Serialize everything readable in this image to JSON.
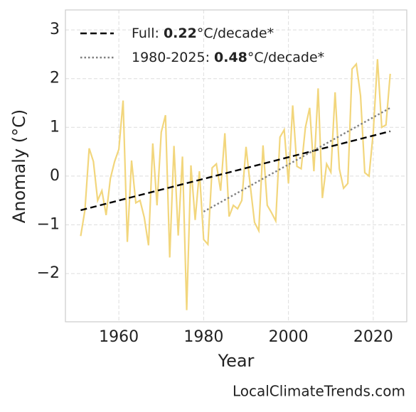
{
  "chart_data": {
    "type": "line",
    "x_label": "Year",
    "y_label": "Anomaly (°C)",
    "source": "LocalClimateTrends.com",
    "x": [
      1951,
      1952,
      1953,
      1954,
      1955,
      1956,
      1957,
      1958,
      1959,
      1960,
      1961,
      1962,
      1963,
      1964,
      1965,
      1966,
      1967,
      1968,
      1969,
      1970,
      1971,
      1972,
      1973,
      1974,
      1975,
      1976,
      1977,
      1978,
      1979,
      1980,
      1981,
      1982,
      1983,
      1984,
      1985,
      1986,
      1987,
      1988,
      1989,
      1990,
      1991,
      1992,
      1993,
      1994,
      1995,
      1996,
      1997,
      1998,
      1999,
      2000,
      2001,
      2002,
      2003,
      2004,
      2005,
      2006,
      2007,
      2008,
      2009,
      2010,
      2011,
      2012,
      2013,
      2014,
      2015,
      2016,
      2017,
      2018,
      2019,
      2020,
      2021,
      2022,
      2023,
      2024
    ],
    "series": [
      {
        "color": "#f2d67c",
        "style": "solid",
        "values": [
          -1.23,
          -0.7,
          0.57,
          0.3,
          -0.5,
          -0.3,
          -0.8,
          -0.05,
          0.3,
          0.55,
          1.55,
          -1.35,
          0.32,
          -0.55,
          -0.5,
          -0.85,
          -1.42,
          0.67,
          -0.6,
          0.9,
          1.25,
          -1.67,
          0.62,
          -1.22,
          0.4,
          -2.75,
          0.22,
          -0.9,
          0.1,
          -1.3,
          -1.4,
          0.17,
          0.25,
          -0.3,
          0.88,
          -0.83,
          -0.6,
          -0.67,
          -0.5,
          0.6,
          -0.2,
          -0.95,
          -1.12,
          0.63,
          -0.6,
          -0.75,
          -0.92,
          0.8,
          0.95,
          -0.15,
          1.45,
          0.2,
          0.15,
          1.0,
          1.4,
          0.1,
          1.8,
          -0.45,
          0.25,
          0.08,
          1.72,
          0.15,
          -0.25,
          -0.15,
          2.2,
          2.3,
          1.65,
          0.07,
          0.0,
          0.9,
          2.4,
          1.0,
          1.05,
          2.1
        ]
      },
      {
        "name": [
          "Full: ",
          "0.22",
          "°C/decade*"
        ],
        "color": "#000000",
        "style": "dashed",
        "x": [
          1951,
          2024
        ],
        "values": [
          -0.7,
          0.92
        ]
      },
      {
        "name": [
          "1980-2025: ",
          "0.48",
          "°C/decade*"
        ],
        "color": "#808080",
        "style": "dotted",
        "x": [
          1980,
          2024
        ],
        "values": [
          -0.73,
          1.4
        ]
      }
    ],
    "xlim": [
      1947.4,
      2027.9
    ],
    "xticks": [
      1960,
      1980,
      2000,
      2020
    ],
    "ylim": [
      -2.99,
      3.41
    ],
    "yticks": [
      {
        "value": -2,
        "label": "−2"
      },
      {
        "value": -1,
        "label": "−1"
      },
      0,
      1,
      2,
      3
    ],
    "grid": true,
    "legend": "upper left"
  }
}
